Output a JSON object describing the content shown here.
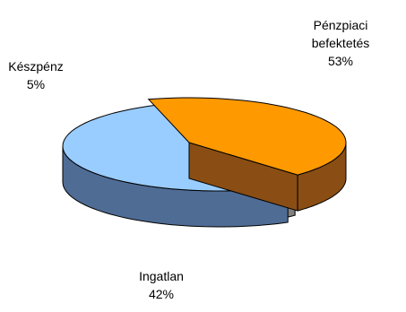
{
  "chart_data": {
    "type": "pie",
    "categories": [
      "Pénzpiaci befektetés",
      "Készpénz",
      "Ingatlan"
    ],
    "values": [
      53,
      5,
      42
    ],
    "data_labels": [
      "53%",
      "5%",
      "42%"
    ],
    "label_lines": {
      "penzpiaci": [
        "Pénzpiaci",
        "befektetés"
      ],
      "keszpenz": [
        "Készpénz"
      ],
      "ingatlan": [
        "Ingatlan"
      ]
    },
    "colors": {
      "penzpiaci_top": "#99CCFF",
      "penzpiaci_side": "#4F6C95",
      "keszpenz_top": "#FFFFFF",
      "keszpenz_side": "#808080",
      "ingatlan_top": "#FF9900",
      "ingatlan_side": "#8A4E14",
      "outline": "#000000"
    },
    "style": "3d-exploded"
  }
}
